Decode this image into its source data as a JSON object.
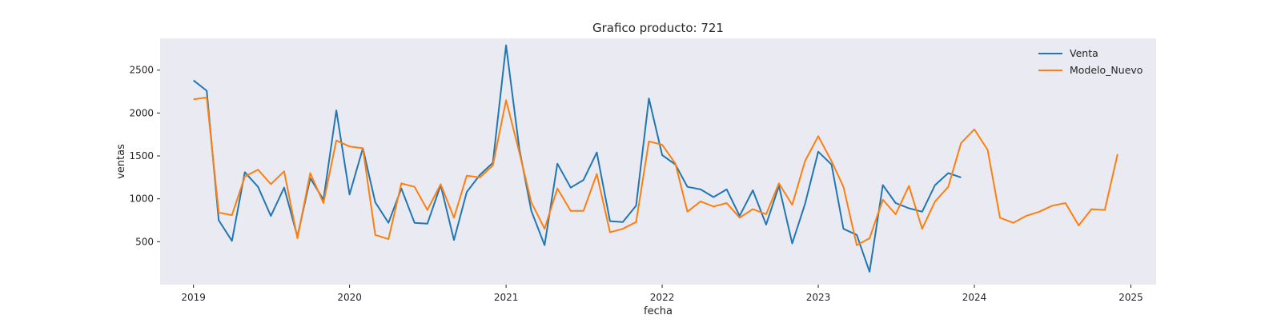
{
  "chart_data": {
    "type": "line",
    "title": "Grafico producto: 721",
    "xlabel": "fecha",
    "ylabel": "ventas",
    "xlim": [
      "2018-10-15",
      "2025-03-01"
    ],
    "ylim": [
      0,
      2870
    ],
    "x_ticks": [
      "2019",
      "2020",
      "2021",
      "2022",
      "2023",
      "2024",
      "2025"
    ],
    "y_ticks": [
      500,
      1000,
      1500,
      2000,
      2500
    ],
    "grid": false,
    "legend_position": "top-right",
    "colors": {
      "plot_bg": "#eaeaf2",
      "Venta": "#1f77b4",
      "Modelo_Nuevo": "#ff7f0e"
    },
    "series": [
      {
        "name": "Venta",
        "x": [
          "2019-01-01",
          "2019-02-01",
          "2019-03-01",
          "2019-04-01",
          "2019-05-01",
          "2019-06-01",
          "2019-07-01",
          "2019-08-01",
          "2019-09-01",
          "2019-10-01",
          "2019-11-01",
          "2019-12-01",
          "2020-01-01",
          "2020-02-01",
          "2020-03-01",
          "2020-04-01",
          "2020-05-01",
          "2020-06-01",
          "2020-07-01",
          "2020-08-01",
          "2020-09-01",
          "2020-10-01",
          "2020-11-01",
          "2020-12-01",
          "2021-01-01",
          "2021-02-01",
          "2021-03-01",
          "2021-04-01",
          "2021-05-01",
          "2021-06-01",
          "2021-07-01",
          "2021-08-01",
          "2021-09-01",
          "2021-10-01",
          "2021-11-01",
          "2021-12-01",
          "2022-01-01",
          "2022-02-01",
          "2022-03-01",
          "2022-04-01",
          "2022-05-01",
          "2022-06-01",
          "2022-07-01",
          "2022-08-01",
          "2022-09-01",
          "2022-10-01",
          "2022-11-01",
          "2022-12-01",
          "2023-01-01",
          "2023-02-01",
          "2023-03-01",
          "2023-04-01",
          "2023-05-01",
          "2023-06-01",
          "2023-07-01",
          "2023-08-01",
          "2023-09-01",
          "2023-10-01",
          "2023-11-01",
          "2023-12-01"
        ],
        "values": [
          2380,
          2260,
          750,
          510,
          1310,
          1140,
          800,
          1130,
          560,
          1240,
          990,
          2030,
          1050,
          1590,
          960,
          720,
          1120,
          720,
          710,
          1160,
          520,
          1080,
          1280,
          1420,
          2790,
          1580,
          860,
          460,
          1410,
          1130,
          1220,
          1540,
          740,
          730,
          920,
          2170,
          1510,
          1400,
          1140,
          1110,
          1020,
          1110,
          800,
          1100,
          700,
          1150,
          480,
          940,
          1550,
          1400,
          650,
          580,
          150,
          1160,
          950,
          890,
          850,
          1160,
          1300,
          1250
        ]
      },
      {
        "name": "Modelo_Nuevo",
        "x": [
          "2019-01-01",
          "2019-02-01",
          "2019-03-01",
          "2019-04-01",
          "2019-05-01",
          "2019-06-01",
          "2019-07-01",
          "2019-08-01",
          "2019-09-01",
          "2019-10-01",
          "2019-11-01",
          "2019-12-01",
          "2020-01-01",
          "2020-02-01",
          "2020-03-01",
          "2020-04-01",
          "2020-05-01",
          "2020-06-01",
          "2020-07-01",
          "2020-08-01",
          "2020-09-01",
          "2020-10-01",
          "2020-11-01",
          "2020-12-01",
          "2021-01-01",
          "2021-02-01",
          "2021-03-01",
          "2021-04-01",
          "2021-05-01",
          "2021-06-01",
          "2021-07-01",
          "2021-08-01",
          "2021-09-01",
          "2021-10-01",
          "2021-11-01",
          "2021-12-01",
          "2022-01-01",
          "2022-02-01",
          "2022-03-01",
          "2022-04-01",
          "2022-05-01",
          "2022-06-01",
          "2022-07-01",
          "2022-08-01",
          "2022-09-01",
          "2022-10-01",
          "2022-11-01",
          "2022-12-01",
          "2023-01-01",
          "2023-02-01",
          "2023-03-01",
          "2023-04-01",
          "2023-05-01",
          "2023-06-01",
          "2023-07-01",
          "2023-08-01",
          "2023-09-01",
          "2023-10-01",
          "2023-11-01",
          "2023-12-01",
          "2024-01-01",
          "2024-02-01",
          "2024-03-01",
          "2024-04-01",
          "2024-05-01",
          "2024-06-01",
          "2024-07-01",
          "2024-08-01",
          "2024-09-01",
          "2024-10-01",
          "2024-11-01",
          "2024-12-01"
        ],
        "values": [
          2160,
          2180,
          840,
          810,
          1260,
          1340,
          1170,
          1320,
          540,
          1300,
          950,
          1680,
          1610,
          1590,
          580,
          530,
          1180,
          1140,
          870,
          1170,
          780,
          1270,
          1250,
          1390,
          2150,
          1540,
          960,
          650,
          1120,
          860,
          860,
          1290,
          610,
          650,
          730,
          1670,
          1630,
          1410,
          850,
          970,
          910,
          950,
          780,
          880,
          820,
          1180,
          930,
          1440,
          1730,
          1440,
          1140,
          460,
          540,
          990,
          820,
          1150,
          650,
          970,
          1140,
          1650,
          1810,
          1570,
          780,
          720,
          800,
          850,
          920,
          950,
          690,
          880,
          870,
          1520
        ]
      }
    ]
  }
}
